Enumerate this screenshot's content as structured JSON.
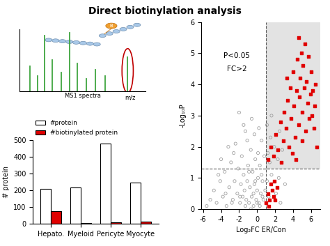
{
  "title": "Direct biotinylation analysis",
  "diagram": {
    "xlabel": "MS1 spectra",
    "axis_end": "m/z",
    "tag": "B"
  },
  "chart_data": [
    {
      "type": "bar",
      "ylabel": "# protein",
      "categories": [
        "Hepato.",
        "Myeloid",
        "Pericyte",
        "Myocyte"
      ],
      "series": [
        {
          "name": "#protein",
          "color": "#ffffff",
          "values": [
            210,
            218,
            478,
            248
          ]
        },
        {
          "name": "#biotinylated protein",
          "color": "#e00000",
          "values": [
            75,
            5,
            10,
            15
          ]
        }
      ],
      "ylim": [
        0,
        500
      ],
      "yticks": [
        0,
        100,
        200,
        300,
        400,
        500
      ],
      "legend": "upper left"
    },
    {
      "type": "scatter",
      "xlabel": "Log₂FC ER/Con",
      "ylabel": "-Log₁₀P",
      "annotations": [
        "P<0.05",
        "FC>2"
      ],
      "thresholds": {
        "x": 1,
        "y": 1.3
      },
      "xlim": [
        -6.2,
        7
      ],
      "ylim": [
        0,
        6
      ],
      "xticks": [
        -6,
        -4,
        -2,
        0,
        2,
        4,
        6
      ],
      "yticks": [
        0,
        1,
        2,
        3,
        4,
        5,
        6
      ],
      "series": [
        {
          "color": "#a0a0a0",
          "marker": "circle",
          "x": [
            -5.2,
            -4.8,
            -4.5,
            -4.1,
            -3.8,
            -3.6,
            -3.4,
            -3.1,
            -2.9,
            -2.7,
            -2.5,
            -2.4,
            -2.2,
            -2.1,
            -1.9,
            -1.8,
            -1.7,
            -1.6,
            -1.5,
            -1.4,
            -1.3,
            -1.2,
            -1.1,
            -1.0,
            -0.9,
            -0.8,
            -0.7,
            -0.6,
            -0.5,
            -0.4,
            -0.3,
            -0.2,
            -0.1,
            0.0,
            0.1,
            0.2,
            0.3,
            0.4,
            0.5,
            0.6,
            0.7,
            0.8,
            0.9,
            -0.6,
            -1.5,
            -2.0,
            0.2,
            -3.2,
            -4.0,
            -0.9,
            -0.2,
            0.5,
            -1.9,
            -2.8,
            -0.4,
            0.3,
            0.6,
            -1.3,
            -0.7,
            0.0,
            1.2,
            1.5,
            1.4,
            1.9,
            2.3,
            2.5,
            1.1,
            2.8,
            1.6,
            1.1,
            1.3,
            1.6,
            2.1,
            2.4,
            2.6,
            3.1,
            -5.6,
            -4.3,
            -3.5,
            -2.6,
            -1.1,
            0.1,
            -0.3
          ],
          "values": [
            0.3,
            0.6,
            0.2,
            0.9,
            0.4,
            1.2,
            0.1,
            0.7,
            1.5,
            0.3,
            0.9,
            2.1,
            0.5,
            1.3,
            0.2,
            0.8,
            1.7,
            0.4,
            1.1,
            0.6,
            2.5,
            0.3,
            0.9,
            1.4,
            0.2,
            0.7,
            1.9,
            0.4,
            1.2,
            0.1,
            0.8,
            1.6,
            0.3,
            0.6,
            1.0,
            0.2,
            1.4,
            0.5,
            2.2,
            0.9,
            0.3,
            1.7,
            0.6,
            2.9,
            2.7,
            3.1,
            2.6,
            2.0,
            1.6,
            1.2,
            0.9,
            1.1,
            0.4,
            0.2,
            0.5,
            0.1,
            0.4,
            0.1,
            0.0,
            0.2,
            1.8,
            2.3,
            1.5,
            2.0,
            1.6,
            2.5,
            2.7,
            1.9,
            3.0,
            0.9,
            0.4,
            1.1,
            0.5,
            1.0,
            0.2,
            0.8,
            0.1,
            1.1,
            0.5,
            1.8,
            2.2,
            1.8,
            2.4
          ]
        },
        {
          "color": "#e00000",
          "marker": "square",
          "x": [
            1.2,
            1.5,
            1.8,
            2.1,
            2.3,
            2.6,
            2.9,
            3.0,
            3.2,
            3.4,
            3.5,
            3.7,
            3.8,
            4.0,
            4.1,
            4.2,
            4.4,
            4.5,
            4.6,
            4.7,
            4.8,
            4.9,
            5.0,
            5.1,
            5.2,
            5.3,
            5.4,
            5.5,
            5.6,
            5.7,
            5.8,
            5.9,
            6.0,
            6.1,
            6.2,
            6.3,
            6.4,
            6.5,
            2.7,
            3.9,
            4.3,
            5.0,
            6.6,
            3.3,
            4.6,
            1.0,
            1.2,
            1.4,
            1.5,
            1.7,
            1.9,
            2.0,
            1.3,
            1.8,
            2.2
          ],
          "values": [
            1.6,
            2.0,
            1.7,
            2.4,
            1.9,
            2.8,
            2.2,
            3.1,
            2.6,
            3.5,
            2.0,
            3.9,
            2.9,
            4.4,
            3.3,
            2.3,
            3.8,
            4.8,
            2.7,
            3.6,
            4.2,
            5.0,
            3.1,
            4.6,
            3.9,
            5.3,
            2.5,
            4.1,
            3.4,
            4.9,
            2.9,
            3.7,
            4.4,
            3.0,
            3.8,
            2.6,
            3.3,
            4.0,
            1.5,
            1.8,
            1.6,
            2.2,
            2.0,
            4.2,
            5.5,
            0.2,
            0.5,
            0.3,
            0.8,
            0.6,
            0.9,
            0.3,
            0.1,
            0.4,
            0.7
          ]
        }
      ]
    }
  ]
}
